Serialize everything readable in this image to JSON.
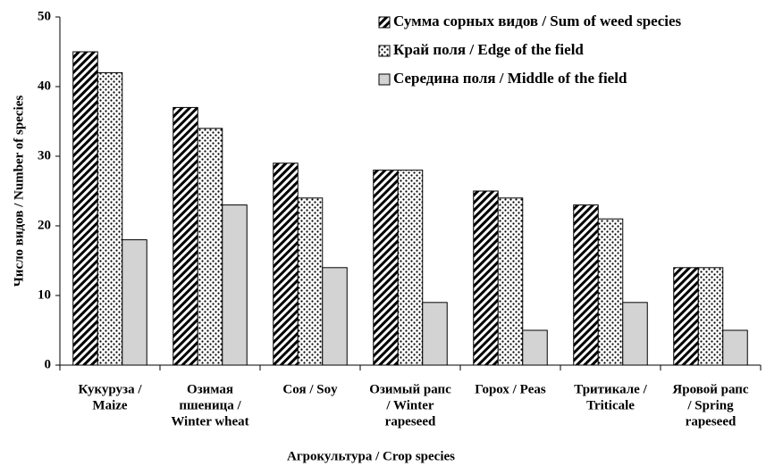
{
  "chart_data": {
    "type": "bar",
    "ylabel": "Число видов / Number of species",
    "xlabel": "Агрокультура / Crop species",
    "categories": [
      [
        "Кукуруза  /",
        "Maize"
      ],
      [
        "Озимая",
        "пшеница  /",
        "Winter wheat"
      ],
      [
        "Соя  /  Soy"
      ],
      [
        "Озимый рапс",
        "/ Winter",
        "rapeseed"
      ],
      [
        "Горох  / Peas"
      ],
      [
        "Тритикале  /",
        "Triticale"
      ],
      [
        "Яровой рапс",
        "/ Spring",
        "rapeseed"
      ]
    ],
    "series": [
      {
        "name": "Сумма сорных видов  / Sum of weed species",
        "color": "#000000",
        "pattern": "hatch",
        "values": [
          45,
          37,
          29,
          28,
          25,
          23,
          14
        ]
      },
      {
        "name": "Край поля / Edge of the field",
        "color": "#000000",
        "pattern": "dots",
        "values": [
          42,
          34,
          24,
          28,
          24,
          21,
          14
        ]
      },
      {
        "name": "Середина поля / Middle of the field",
        "color": "#d3d3d3",
        "pattern": "solid",
        "values": [
          18,
          23,
          14,
          9,
          5,
          9,
          5
        ]
      }
    ],
    "ylim": [
      0,
      50
    ],
    "yticks": [
      0,
      10,
      20,
      30,
      40,
      50
    ],
    "legend": "top-right"
  }
}
